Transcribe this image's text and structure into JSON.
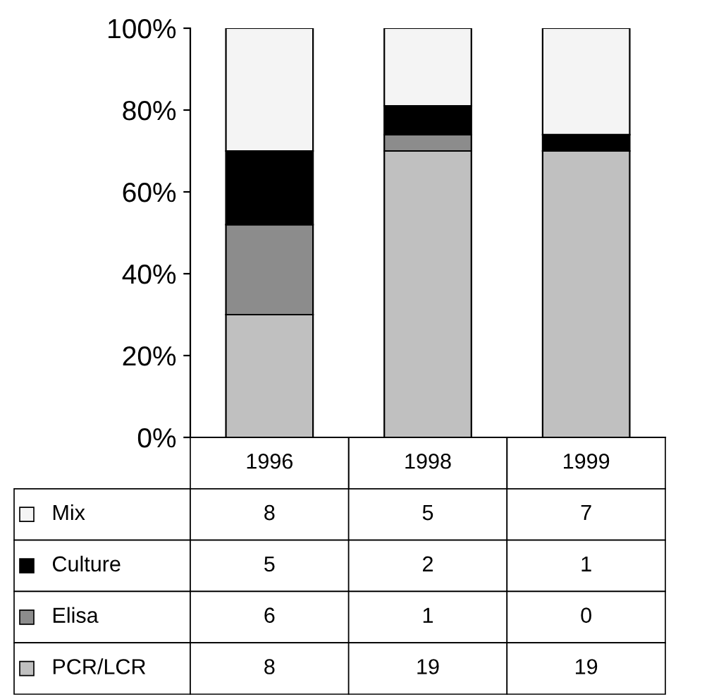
{
  "chart_data": {
    "type": "bar",
    "stacked": true,
    "categories": [
      "1996",
      "1998",
      "1999"
    ],
    "series": [
      {
        "name": "PCR/LCR",
        "color": "#c0c0c0",
        "values": [
          30,
          70,
          70
        ]
      },
      {
        "name": "Elisa",
        "color": "#8c8c8c",
        "values": [
          22,
          4,
          0
        ]
      },
      {
        "name": "Culture",
        "color": "#000000",
        "values": [
          18,
          7,
          4
        ]
      },
      {
        "name": "Mix",
        "color": "#f4f4f4",
        "values": [
          30,
          19,
          26
        ]
      }
    ],
    "annotations": [
      "8",
      "5",
      "7",
      "5",
      "2",
      "1",
      "6",
      "1",
      "0",
      "8",
      "19",
      "19"
    ],
    "ylim": [
      0,
      100
    ],
    "yticks": [
      {
        "value": 0,
        "label": "0%"
      },
      {
        "value": 20,
        "label": "20%"
      },
      {
        "value": 40,
        "label": "40%"
      },
      {
        "value": 60,
        "label": "60%"
      },
      {
        "value": 80,
        "label": "80%"
      },
      {
        "value": 100,
        "label": "100%"
      }
    ],
    "tick_labels": "y",
    "grid": false,
    "legend": "bottom left"
  }
}
